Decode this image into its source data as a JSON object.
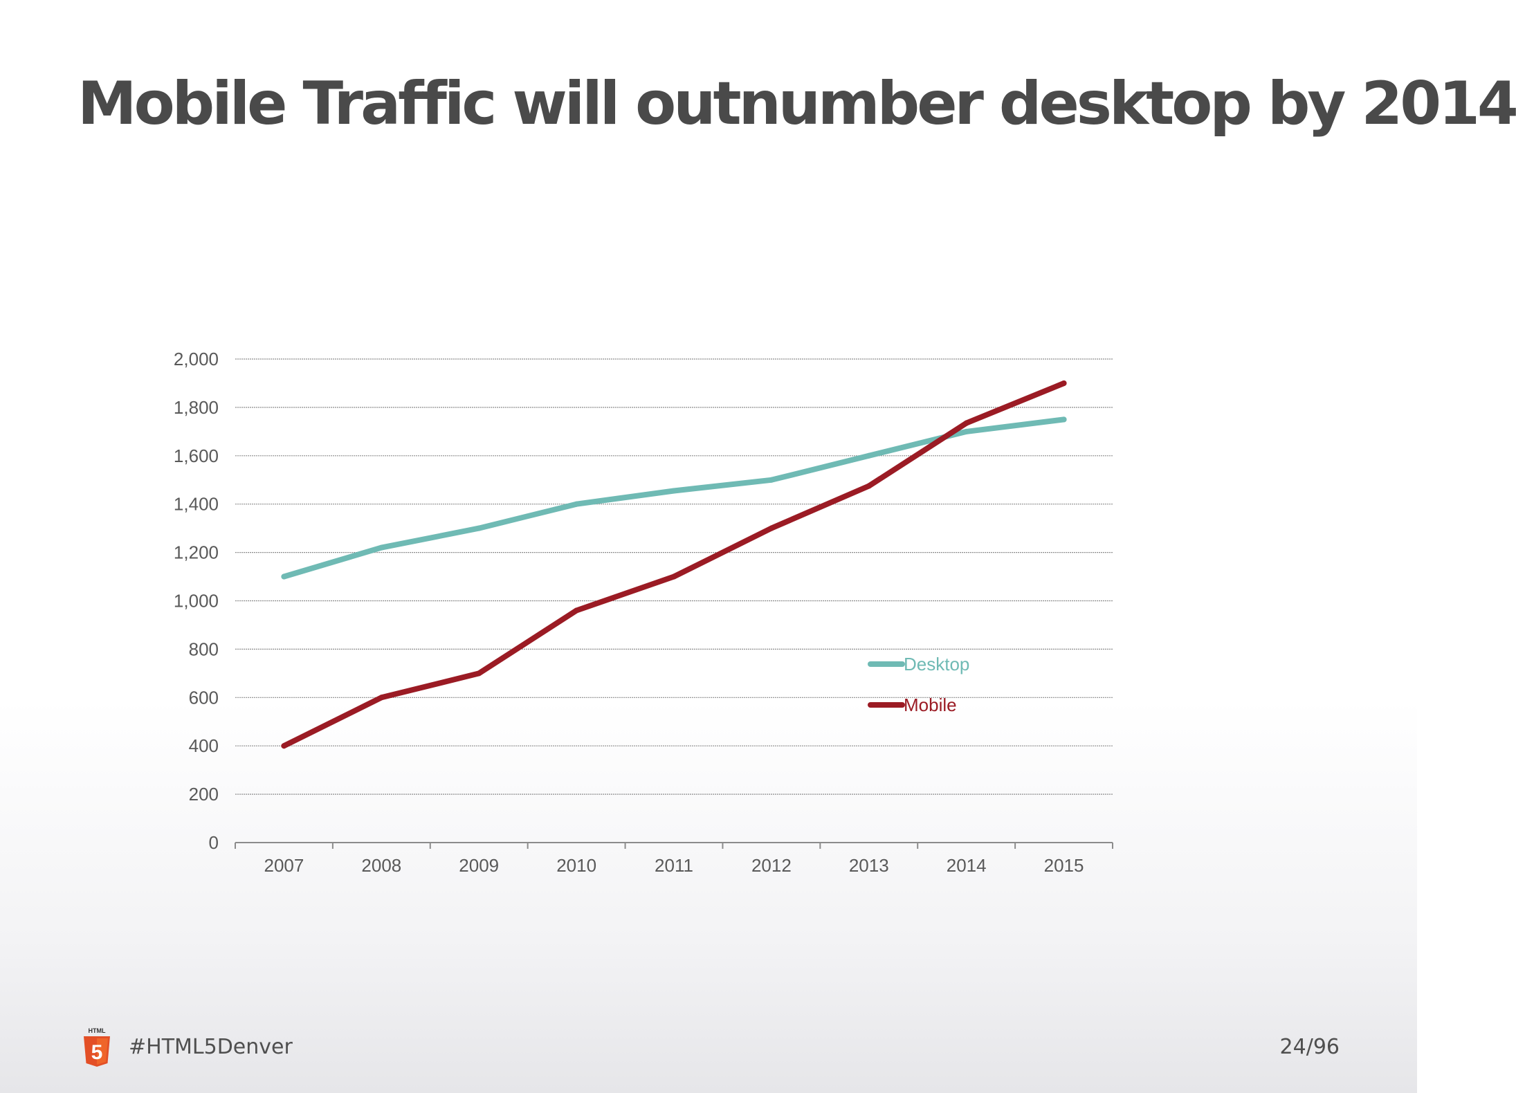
{
  "slide": {
    "title": "Mobile Traffic will outnumber desktop by 2014"
  },
  "footer": {
    "logo_icon": "html5-logo-icon",
    "logo_text": "HTML",
    "logo_glyph": "5",
    "hashtag": "#HTML5Denver",
    "page": "24/96"
  },
  "chart_data": {
    "type": "line",
    "title": "",
    "xlabel": "",
    "ylabel": "",
    "categories": [
      "2007",
      "2008",
      "2009",
      "2010",
      "2011",
      "2012",
      "2013",
      "2014",
      "2015"
    ],
    "yticks": [
      0,
      200,
      400,
      600,
      800,
      1000,
      1200,
      1400,
      1600,
      1800,
      2000
    ],
    "ytick_labels": [
      "0",
      "200",
      "400",
      "600",
      "800",
      "1,000",
      "1,200",
      "1,400",
      "1,600",
      "1,800",
      "2,000"
    ],
    "ylim": [
      0,
      2000
    ],
    "grid": true,
    "legend_position": "center-right",
    "series": [
      {
        "name": "Desktop",
        "color": "#6fbab4",
        "values": [
          1100,
          1220,
          1300,
          1400,
          1455,
          1500,
          1600,
          1700,
          1750
        ]
      },
      {
        "name": "Mobile",
        "color": "#9b1b24",
        "values": [
          400,
          600,
          700,
          960,
          1100,
          1300,
          1475,
          1735,
          1900
        ]
      }
    ]
  }
}
